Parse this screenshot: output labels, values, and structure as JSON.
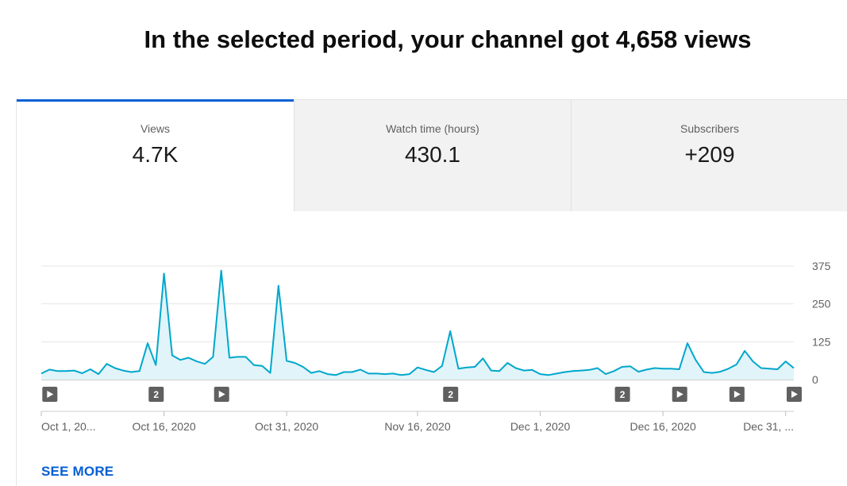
{
  "headline": "In the selected period, your channel got 4,658 views",
  "tabs": [
    {
      "label": "Views",
      "value": "4.7K",
      "active": true
    },
    {
      "label": "Watch time (hours)",
      "value": "430.1",
      "active": false
    },
    {
      "label": "Subscribers",
      "value": "+209",
      "active": false
    }
  ],
  "chart_data": {
    "type": "area",
    "start_date": "Oct 1, 2020",
    "x_labels": [
      "Oct 1, 20...",
      "Oct 16, 2020",
      "Oct 31, 2020",
      "Nov 16, 2020",
      "Dec 1, 2020",
      "Dec 16, 2020",
      "Dec 31, ..."
    ],
    "y_ticks": [
      0,
      125,
      250,
      375
    ],
    "ylim": [
      0,
      375
    ],
    "grid": true,
    "line_color": "#00a7cc",
    "fill_color": "#e1f4f9",
    "series": [
      {
        "values": [
          20,
          33,
          28,
          28,
          30,
          21,
          34,
          18,
          52,
          38,
          30,
          25,
          28,
          120,
          48,
          350,
          80,
          65,
          72,
          60,
          52,
          75,
          360,
          72,
          75,
          75,
          48,
          45,
          22,
          310,
          62,
          55,
          42,
          22,
          28,
          18,
          15,
          25,
          25,
          33,
          20,
          20,
          18,
          20,
          15,
          18,
          40,
          32,
          25,
          45,
          160,
          36,
          40,
          42,
          70,
          30,
          28,
          55,
          38,
          30,
          32,
          18,
          15,
          20,
          25,
          28,
          30,
          32,
          38,
          18,
          28,
          42,
          44,
          26,
          33,
          38,
          36,
          36,
          34,
          120,
          65,
          25,
          22,
          26,
          36,
          50,
          95,
          60,
          38,
          36,
          34,
          60,
          38
        ]
      }
    ],
    "markers": [
      {
        "x_index": 1,
        "kind": "play"
      },
      {
        "x_index": 14,
        "kind": "count",
        "label": "2"
      },
      {
        "x_index": 22,
        "kind": "play"
      },
      {
        "x_index": 50,
        "kind": "count",
        "label": "2"
      },
      {
        "x_index": 71,
        "kind": "count",
        "label": "2"
      },
      {
        "x_index": 78,
        "kind": "play"
      },
      {
        "x_index": 85,
        "kind": "play"
      },
      {
        "x_index": 92,
        "kind": "play"
      }
    ]
  },
  "see_more": "SEE MORE"
}
